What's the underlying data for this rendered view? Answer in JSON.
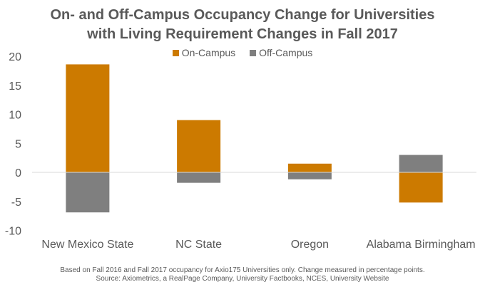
{
  "chart_data": {
    "type": "bar",
    "stacked": true,
    "title": "On- and Off-Campus Occupancy Change for Universities with Living Requirement Changes in Fall 2017",
    "title_lines": [
      "On- and Off-Campus Occupancy Change for Universities",
      "with Living Requirement Changes in Fall 2017"
    ],
    "categories": [
      "New Mexico State",
      "NC State",
      "Oregon",
      "Alabama Birmingham"
    ],
    "series": [
      {
        "name": "On-Campus",
        "color": "#CC7A00",
        "values": [
          18.6,
          9.0,
          1.5,
          -5.2
        ]
      },
      {
        "name": "Off-Campus",
        "color": "#7F7F7F",
        "values": [
          -6.9,
          -1.8,
          -1.2,
          3.0
        ]
      }
    ],
    "ylim": [
      -10,
      20
    ],
    "yticks": [
      20,
      15,
      10,
      5,
      0,
      -5,
      -10
    ],
    "xlabel": "",
    "ylabel": "",
    "legend": "top-center",
    "grid": false
  },
  "footnotes": [
    "Based on Fall 2016 and Fall 2017 occupancy for Axio175 Universities only. Change measured in percentage points.",
    "Source: Axiometrics, a RealPage Company, University Factbooks, NCES, University Website"
  ]
}
